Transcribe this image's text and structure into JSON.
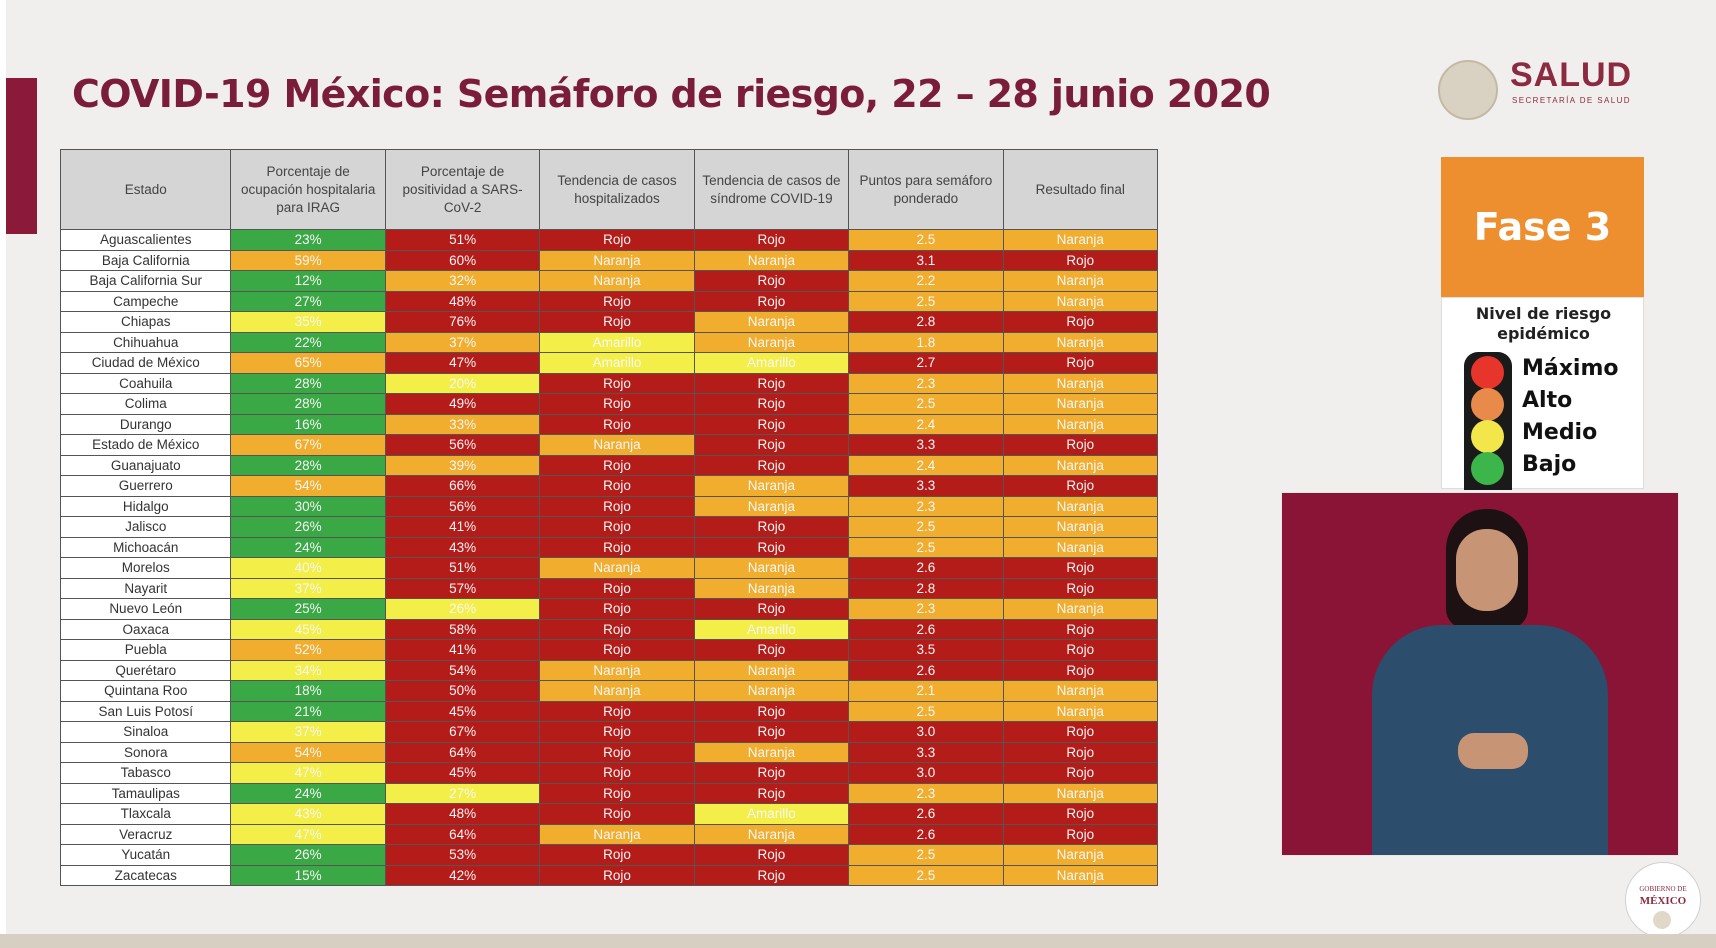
{
  "header": {
    "title": "COVID-19 México: Semáforo de riesgo, 22 – 28 junio 2020",
    "logo_text": "SALUD",
    "logo_subtext": "SECRETARÍA DE SALUD"
  },
  "colors": {
    "Verde": "#3aa845",
    "Amarillo": "#f3ee48",
    "Naranja": "#f0ad2e",
    "Rojo": "#b41c1a",
    "title": "#7a1d3b",
    "fase": "#ed8f2e",
    "accent": "#8b1a3a"
  },
  "table": {
    "headers": [
      "Estado",
      "Porcentaje de ocupación hospitalaria para IRAG",
      "Porcentaje de positividad a SARS-CoV-2",
      "Tendencia de casos hospitalizados",
      "Tendencia de casos de síndrome COVID-19",
      "Puntos para semáforo ponderado",
      "Resultado final"
    ],
    "rows": [
      {
        "estado": "Aguascalientes",
        "ocupacion": "23%",
        "ocupacion_color": "Verde",
        "positividad": "51%",
        "positividad_color": "Rojo",
        "hosp": "Rojo",
        "sind": "Rojo",
        "puntos": "2.5",
        "puntos_color": "Naranja",
        "resultado": "Naranja"
      },
      {
        "estado": "Baja California",
        "ocupacion": "59%",
        "ocupacion_color": "Naranja",
        "positividad": "60%",
        "positividad_color": "Rojo",
        "hosp": "Naranja",
        "sind": "Naranja",
        "puntos": "3.1",
        "puntos_color": "Rojo",
        "resultado": "Rojo"
      },
      {
        "estado": "Baja California Sur",
        "ocupacion": "12%",
        "ocupacion_color": "Verde",
        "positividad": "32%",
        "positividad_color": "Naranja",
        "hosp": "Naranja",
        "sind": "Rojo",
        "puntos": "2.2",
        "puntos_color": "Naranja",
        "resultado": "Naranja"
      },
      {
        "estado": "Campeche",
        "ocupacion": "27%",
        "ocupacion_color": "Verde",
        "positividad": "48%",
        "positividad_color": "Rojo",
        "hosp": "Rojo",
        "sind": "Rojo",
        "puntos": "2.5",
        "puntos_color": "Naranja",
        "resultado": "Naranja"
      },
      {
        "estado": "Chiapas",
        "ocupacion": "35%",
        "ocupacion_color": "Amarillo",
        "positividad": "76%",
        "positividad_color": "Rojo",
        "hosp": "Rojo",
        "sind": "Naranja",
        "puntos": "2.8",
        "puntos_color": "Rojo",
        "resultado": "Rojo"
      },
      {
        "estado": "Chihuahua",
        "ocupacion": "22%",
        "ocupacion_color": "Verde",
        "positividad": "37%",
        "positividad_color": "Naranja",
        "hosp": "Amarillo",
        "sind": "Naranja",
        "puntos": "1.8",
        "puntos_color": "Naranja",
        "resultado": "Naranja"
      },
      {
        "estado": "Ciudad de México",
        "ocupacion": "65%",
        "ocupacion_color": "Naranja",
        "positividad": "47%",
        "positividad_color": "Rojo",
        "hosp": "Amarillo",
        "sind": "Amarillo",
        "puntos": "2.7",
        "puntos_color": "Rojo",
        "resultado": "Rojo"
      },
      {
        "estado": "Coahuila",
        "ocupacion": "28%",
        "ocupacion_color": "Verde",
        "positividad": "20%",
        "positividad_color": "Amarillo",
        "hosp": "Rojo",
        "sind": "Rojo",
        "puntos": "2.3",
        "puntos_color": "Naranja",
        "resultado": "Naranja"
      },
      {
        "estado": "Colima",
        "ocupacion": "28%",
        "ocupacion_color": "Verde",
        "positividad": "49%",
        "positividad_color": "Rojo",
        "hosp": "Rojo",
        "sind": "Rojo",
        "puntos": "2.5",
        "puntos_color": "Naranja",
        "resultado": "Naranja"
      },
      {
        "estado": "Durango",
        "ocupacion": "16%",
        "ocupacion_color": "Verde",
        "positividad": "33%",
        "positividad_color": "Naranja",
        "hosp": "Rojo",
        "sind": "Rojo",
        "puntos": "2.4",
        "puntos_color": "Naranja",
        "resultado": "Naranja"
      },
      {
        "estado": "Estado de México",
        "ocupacion": "67%",
        "ocupacion_color": "Naranja",
        "positividad": "56%",
        "positividad_color": "Rojo",
        "hosp": "Naranja",
        "sind": "Rojo",
        "puntos": "3.3",
        "puntos_color": "Rojo",
        "resultado": "Rojo"
      },
      {
        "estado": "Guanajuato",
        "ocupacion": "28%",
        "ocupacion_color": "Verde",
        "positividad": "39%",
        "positividad_color": "Naranja",
        "hosp": "Rojo",
        "sind": "Rojo",
        "puntos": "2.4",
        "puntos_color": "Naranja",
        "resultado": "Naranja"
      },
      {
        "estado": "Guerrero",
        "ocupacion": "54%",
        "ocupacion_color": "Naranja",
        "positividad": "66%",
        "positividad_color": "Rojo",
        "hosp": "Rojo",
        "sind": "Naranja",
        "puntos": "3.3",
        "puntos_color": "Rojo",
        "resultado": "Rojo"
      },
      {
        "estado": "Hidalgo",
        "ocupacion": "30%",
        "ocupacion_color": "Verde",
        "positividad": "56%",
        "positividad_color": "Rojo",
        "hosp": "Rojo",
        "sind": "Naranja",
        "puntos": "2.3",
        "puntos_color": "Naranja",
        "resultado": "Naranja"
      },
      {
        "estado": "Jalisco",
        "ocupacion": "26%",
        "ocupacion_color": "Verde",
        "positividad": "41%",
        "positividad_color": "Rojo",
        "hosp": "Rojo",
        "sind": "Rojo",
        "puntos": "2.5",
        "puntos_color": "Naranja",
        "resultado": "Naranja"
      },
      {
        "estado": "Michoacán",
        "ocupacion": "24%",
        "ocupacion_color": "Verde",
        "positividad": "43%",
        "positividad_color": "Rojo",
        "hosp": "Rojo",
        "sind": "Rojo",
        "puntos": "2.5",
        "puntos_color": "Naranja",
        "resultado": "Naranja"
      },
      {
        "estado": "Morelos",
        "ocupacion": "40%",
        "ocupacion_color": "Amarillo",
        "positividad": "51%",
        "positividad_color": "Rojo",
        "hosp": "Naranja",
        "sind": "Naranja",
        "puntos": "2.6",
        "puntos_color": "Rojo",
        "resultado": "Rojo"
      },
      {
        "estado": "Nayarit",
        "ocupacion": "37%",
        "ocupacion_color": "Amarillo",
        "positividad": "57%",
        "positividad_color": "Rojo",
        "hosp": "Rojo",
        "sind": "Naranja",
        "puntos": "2.8",
        "puntos_color": "Rojo",
        "resultado": "Rojo"
      },
      {
        "estado": "Nuevo León",
        "ocupacion": "25%",
        "ocupacion_color": "Verde",
        "positividad": "26%",
        "positividad_color": "Amarillo",
        "hosp": "Rojo",
        "sind": "Rojo",
        "puntos": "2.3",
        "puntos_color": "Naranja",
        "resultado": "Naranja"
      },
      {
        "estado": "Oaxaca",
        "ocupacion": "45%",
        "ocupacion_color": "Amarillo",
        "positividad": "58%",
        "positividad_color": "Rojo",
        "hosp": "Rojo",
        "sind": "Amarillo",
        "puntos": "2.6",
        "puntos_color": "Rojo",
        "resultado": "Rojo"
      },
      {
        "estado": "Puebla",
        "ocupacion": "52%",
        "ocupacion_color": "Naranja",
        "positividad": "41%",
        "positividad_color": "Rojo",
        "hosp": "Rojo",
        "sind": "Rojo",
        "puntos": "3.5",
        "puntos_color": "Rojo",
        "resultado": "Rojo"
      },
      {
        "estado": "Querétaro",
        "ocupacion": "34%",
        "ocupacion_color": "Amarillo",
        "positividad": "54%",
        "positividad_color": "Rojo",
        "hosp": "Naranja",
        "sind": "Naranja",
        "puntos": "2.6",
        "puntos_color": "Rojo",
        "resultado": "Rojo"
      },
      {
        "estado": "Quintana Roo",
        "ocupacion": "18%",
        "ocupacion_color": "Verde",
        "positividad": "50%",
        "positividad_color": "Rojo",
        "hosp": "Naranja",
        "sind": "Naranja",
        "puntos": "2.1",
        "puntos_color": "Naranja",
        "resultado": "Naranja"
      },
      {
        "estado": "San Luis Potosí",
        "ocupacion": "21%",
        "ocupacion_color": "Verde",
        "positividad": "45%",
        "positividad_color": "Rojo",
        "hosp": "Rojo",
        "sind": "Rojo",
        "puntos": "2.5",
        "puntos_color": "Naranja",
        "resultado": "Naranja"
      },
      {
        "estado": "Sinaloa",
        "ocupacion": "37%",
        "ocupacion_color": "Amarillo",
        "positividad": "67%",
        "positividad_color": "Rojo",
        "hosp": "Rojo",
        "sind": "Rojo",
        "puntos": "3.0",
        "puntos_color": "Rojo",
        "resultado": "Rojo"
      },
      {
        "estado": "Sonora",
        "ocupacion": "54%",
        "ocupacion_color": "Naranja",
        "positividad": "64%",
        "positividad_color": "Rojo",
        "hosp": "Rojo",
        "sind": "Naranja",
        "puntos": "3.3",
        "puntos_color": "Rojo",
        "resultado": "Rojo"
      },
      {
        "estado": "Tabasco",
        "ocupacion": "47%",
        "ocupacion_color": "Amarillo",
        "positividad": "45%",
        "positividad_color": "Rojo",
        "hosp": "Rojo",
        "sind": "Rojo",
        "puntos": "3.0",
        "puntos_color": "Rojo",
        "resultado": "Rojo"
      },
      {
        "estado": "Tamaulipas",
        "ocupacion": "24%",
        "ocupacion_color": "Verde",
        "positividad": "27%",
        "positividad_color": "Amarillo",
        "hosp": "Rojo",
        "sind": "Rojo",
        "puntos": "2.3",
        "puntos_color": "Naranja",
        "resultado": "Naranja"
      },
      {
        "estado": "Tlaxcala",
        "ocupacion": "43%",
        "ocupacion_color": "Amarillo",
        "positividad": "48%",
        "positividad_color": "Rojo",
        "hosp": "Rojo",
        "sind": "Amarillo",
        "puntos": "2.6",
        "puntos_color": "Rojo",
        "resultado": "Rojo"
      },
      {
        "estado": "Veracruz",
        "ocupacion": "47%",
        "ocupacion_color": "Amarillo",
        "positividad": "64%",
        "positividad_color": "Rojo",
        "hosp": "Naranja",
        "sind": "Naranja",
        "puntos": "2.6",
        "puntos_color": "Rojo",
        "resultado": "Rojo"
      },
      {
        "estado": "Yucatán",
        "ocupacion": "26%",
        "ocupacion_color": "Verde",
        "positividad": "53%",
        "positividad_color": "Rojo",
        "hosp": "Rojo",
        "sind": "Rojo",
        "puntos": "2.5",
        "puntos_color": "Naranja",
        "resultado": "Naranja"
      },
      {
        "estado": "Zacatecas",
        "ocupacion": "15%",
        "ocupacion_color": "Verde",
        "positividad": "42%",
        "positividad_color": "Rojo",
        "hosp": "Rojo",
        "sind": "Rojo",
        "puntos": "2.5",
        "puntos_color": "Naranja",
        "resultado": "Naranja"
      }
    ]
  },
  "fase_panel": {
    "label": "Fase 3",
    "nivel_title": "Nivel de riesgo epidémico",
    "levels": [
      {
        "label": "Máximo",
        "color": "#e8352c"
      },
      {
        "label": "Alto",
        "color": "#e88a4a"
      },
      {
        "label": "Medio",
        "color": "#f2e64a"
      },
      {
        "label": "Bajo",
        "color": "#3cb54a"
      }
    ]
  },
  "footer": {
    "gob_line1": "GOBIERNO DE",
    "gob_line2": "MÉXICO"
  }
}
